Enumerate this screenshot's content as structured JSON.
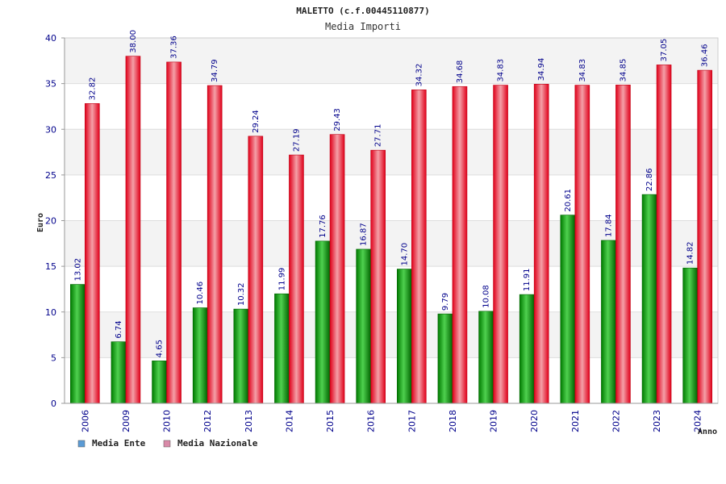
{
  "chart_data": {
    "type": "bar",
    "title": "MALETTO (c.f.00445110877)",
    "subtitle": "Media Importi",
    "xlabel": "Anno",
    "ylabel": "Euro",
    "ylim": [
      0,
      40
    ],
    "yticks": [
      0,
      5,
      10,
      15,
      20,
      25,
      30,
      35,
      40
    ],
    "grid": true,
    "legend_position": "bottom-left",
    "categories": [
      "2006",
      "2009",
      "2010",
      "2012",
      "2013",
      "2014",
      "2015",
      "2016",
      "2017",
      "2018",
      "2019",
      "2020",
      "2021",
      "2022",
      "2023",
      "2024"
    ],
    "series": [
      {
        "name": "Media Ente",
        "legend_color": "#5b9bd5",
        "bar_color": "#1fa81f",
        "values": [
          13.02,
          6.74,
          4.65,
          10.46,
          10.32,
          11.99,
          17.76,
          16.87,
          14.7,
          9.79,
          10.08,
          11.91,
          20.61,
          17.84,
          22.86,
          14.82
        ],
        "labels": [
          "13.02",
          "6.74",
          "4.65",
          "10.46",
          "10.32",
          "11.99",
          "17.76",
          "16.87",
          "14.70",
          "9.79",
          "10.08",
          "11.91",
          "20.61",
          "17.84",
          "22.86",
          "14.82"
        ]
      },
      {
        "name": "Media Nazionale",
        "legend_color": "#d98aa8",
        "bar_color": "#e81e2a",
        "values": [
          32.82,
          38.0,
          37.36,
          34.79,
          29.24,
          27.19,
          29.43,
          27.71,
          34.32,
          34.68,
          34.83,
          34.94,
          34.83,
          34.85,
          37.05,
          36.46
        ],
        "labels": [
          "32.82",
          "38.00",
          "37.36",
          "34.79",
          "29.24",
          "27.19",
          "29.43",
          "27.71",
          "34.32",
          "34.68",
          "34.83",
          "34.94",
          "34.83",
          "34.85",
          "37.05",
          "36.46"
        ]
      }
    ]
  }
}
